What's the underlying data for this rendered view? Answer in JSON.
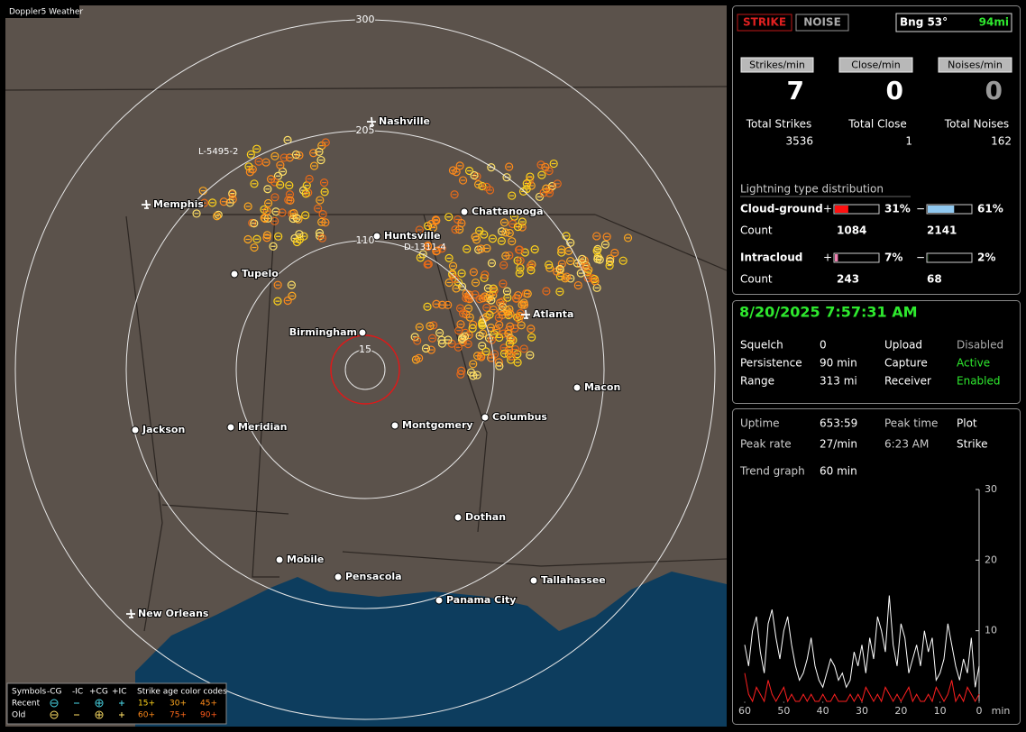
{
  "header": {
    "app": "Doppler5 Weather"
  },
  "map": {
    "ring_labels": [
      "300",
      "205",
      "110",
      "15"
    ],
    "cities": [
      "Nashville",
      "Memphis",
      "Chattanooga",
      "Huntsville",
      "Tupelo",
      "Birmingham",
      "Atlanta",
      "Macon",
      "Jackson",
      "Meridian",
      "Montgomery",
      "Columbus",
      "Dothan",
      "Mobile",
      "Pensacola",
      "Tallahassee",
      "Panama City",
      "New Orleans"
    ],
    "storm_labels": [
      "L-5495-2",
      "D-1311-4"
    ],
    "legend": {
      "symbols": "Symbols",
      "kinds": [
        "-CG",
        "-IC",
        "+CG",
        "+IC"
      ],
      "age_title": "Strike age color codes",
      "rows": [
        "Recent",
        "Old"
      ],
      "ages": [
        [
          "15+",
          "30+",
          "45+"
        ],
        [
          "60+",
          "75+",
          "90+"
        ]
      ]
    }
  },
  "status": {
    "strike": "STRIKE",
    "noise": "NOISE",
    "bearing": "Bng 53°",
    "distance": "94mi",
    "rates": [
      {
        "label": "Strikes/min",
        "value": 7
      },
      {
        "label": "Close/min",
        "value": 0
      },
      {
        "label": "Noises/min",
        "value": 0
      }
    ],
    "totals": [
      {
        "label": "Total Strikes",
        "value": 3536
      },
      {
        "label": "Total Close",
        "value": 1
      },
      {
        "label": "Total Noises",
        "value": 162
      }
    ],
    "distribution": {
      "title": "Lightning type distribution",
      "plus": "+",
      "minus": "−",
      "count": "Count",
      "rows": [
        {
          "label": "Cloud-ground",
          "pos": {
            "value": 31,
            "label": "31%"
          },
          "neg": {
            "value": 61,
            "label": "61%"
          },
          "pos_count": 1084,
          "neg_count": 2141
        },
        {
          "label": "Intracloud",
          "pos": {
            "value": 7,
            "label": "7%"
          },
          "neg": {
            "value": 2,
            "label": "2%"
          },
          "pos_count": 243,
          "neg_count": 68
        }
      ]
    }
  },
  "settings": {
    "datetime": "8/20/2025 7:57:31 AM",
    "rows": [
      [
        "Squelch",
        "0",
        "Upload",
        "Disabled"
      ],
      [
        "Persistence",
        "90 min",
        "Capture",
        "Active"
      ],
      [
        "Range",
        "313 mi",
        "Receiver",
        "Enabled"
      ]
    ]
  },
  "stats": {
    "rows": [
      [
        "Uptime",
        "653:59",
        "Peak time",
        "Plot"
      ],
      [
        "Peak rate",
        "27/min",
        "6:23 AM",
        "Strike"
      ]
    ],
    "trend_label": "Trend graph",
    "trend_value": "60 min"
  },
  "chart_data": {
    "type": "line",
    "xlabel": "min",
    "x": [
      60,
      59,
      58,
      57,
      56,
      55,
      54,
      53,
      52,
      51,
      50,
      49,
      48,
      47,
      46,
      45,
      44,
      43,
      42,
      41,
      40,
      39,
      38,
      37,
      36,
      35,
      34,
      33,
      32,
      31,
      30,
      29,
      28,
      27,
      26,
      25,
      24,
      23,
      22,
      21,
      20,
      19,
      18,
      17,
      16,
      15,
      14,
      13,
      12,
      11,
      10,
      9,
      8,
      7,
      6,
      5,
      4,
      3,
      2,
      1,
      0
    ],
    "series": [
      {
        "color": "#ffffff",
        "values": [
          8,
          5,
          10,
          12,
          7,
          4,
          11,
          13,
          9,
          6,
          10,
          12,
          8,
          5,
          3,
          4,
          6,
          9,
          5,
          3,
          2,
          4,
          6,
          5,
          3,
          4,
          2,
          3,
          7,
          5,
          8,
          4,
          9,
          6,
          12,
          10,
          7,
          15,
          8,
          5,
          11,
          9,
          4,
          6,
          8,
          5,
          10,
          7,
          9,
          3,
          4,
          6,
          11,
          8,
          5,
          3,
          6,
          4,
          9,
          2,
          5
        ]
      },
      {
        "color": "#ff2020",
        "values": [
          4,
          1,
          0,
          2,
          1,
          0,
          3,
          1,
          0,
          1,
          2,
          0,
          1,
          0,
          0,
          1,
          0,
          1,
          0,
          0,
          1,
          0,
          0,
          1,
          0,
          0,
          0,
          1,
          0,
          1,
          0,
          2,
          1,
          0,
          1,
          0,
          2,
          1,
          0,
          1,
          0,
          1,
          2,
          0,
          1,
          0,
          0,
          1,
          0,
          2,
          1,
          0,
          1,
          3,
          0,
          1,
          0,
          2,
          1,
          0,
          1
        ]
      }
    ],
    "xlim": [
      60,
      0
    ],
    "ylim": [
      0,
      30
    ],
    "xticks": [
      60,
      50,
      40,
      30,
      20,
      10,
      0
    ],
    "yticks": [
      10,
      20,
      30
    ]
  }
}
